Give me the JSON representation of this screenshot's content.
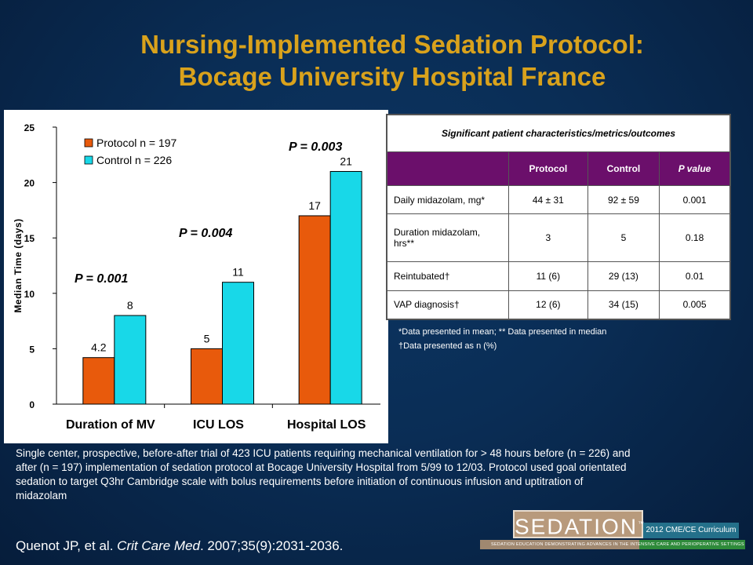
{
  "slide": {
    "title_line1": "Nursing-Implemented Sedation Protocol:",
    "title_line2": "Bocage University Hospital France"
  },
  "chart_data": {
    "type": "bar",
    "categories": [
      "Duration of MV",
      "ICU LOS",
      "Hospital LOS"
    ],
    "series": [
      {
        "name": "Protocol n = 197",
        "values": [
          4.2,
          5,
          17
        ],
        "color": "#e85a0c"
      },
      {
        "name": "Control n = 226",
        "values": [
          8,
          11,
          21
        ],
        "color": "#18d8e8"
      }
    ],
    "data_labels": [
      [
        "4.2",
        "8"
      ],
      [
        "5",
        "11"
      ],
      [
        "17",
        "21"
      ]
    ],
    "annotations": [
      "P = 0.001",
      "P = 0.004",
      "P = 0.003"
    ],
    "ylabel": "Median Time (days)",
    "xlabel": "",
    "ylim": [
      0,
      25
    ],
    "yticks": [
      "0",
      "5",
      "10",
      "15",
      "20",
      "25"
    ],
    "legend_position": "top-left",
    "grid": false
  },
  "table": {
    "caption": "Significant patient characteristics/metrics/outcomes",
    "headers": [
      "",
      "Protocol",
      "Control",
      "P value"
    ],
    "rows": [
      [
        "Daily midazolam, mg*",
        "44 ± 31",
        "92 ± 59",
        "0.001"
      ],
      [
        "Duration midazolam, hrs**",
        "3",
        "5",
        "0.18"
      ],
      [
        "Reintubated†",
        "11 (6)",
        "29 (13)",
        "0.01"
      ],
      [
        "VAP diagnosis†",
        "12 (6)",
        "34 (15)",
        "0.005"
      ]
    ]
  },
  "footnotes": {
    "line1": "*Data presented in mean; ** Data presented in median",
    "line2": "†Data presented as n (%)"
  },
  "summary": "Single center, prospective, before-after trial of 423 ICU patients requiring mechanical ventilation for > 48 hours before (n = 226) and after (n = 197) implementation of sedation protocol at Bocage University Hospital from 5/99 to 12/03. Protocol used goal orientated sedation to target Q3hr Cambridge scale with bolus requirements before initiation of continuous infusion and uptitration of midazolam",
  "citation": {
    "authors": "Quenot JP, et al. ",
    "journal": "Crit Care Med",
    "details": ". 2007;35(9):2031-2036."
  },
  "logo": {
    "word": "SEDATION",
    "tm": "™",
    "curriculum": "2012 CME/CE Curriculum",
    "strip": "SEDATION EDUCATION DEMONSTRATING ADVANCES IN THE INTENSIVE CARE AND PERIOPERATIVE SETTINGS"
  }
}
